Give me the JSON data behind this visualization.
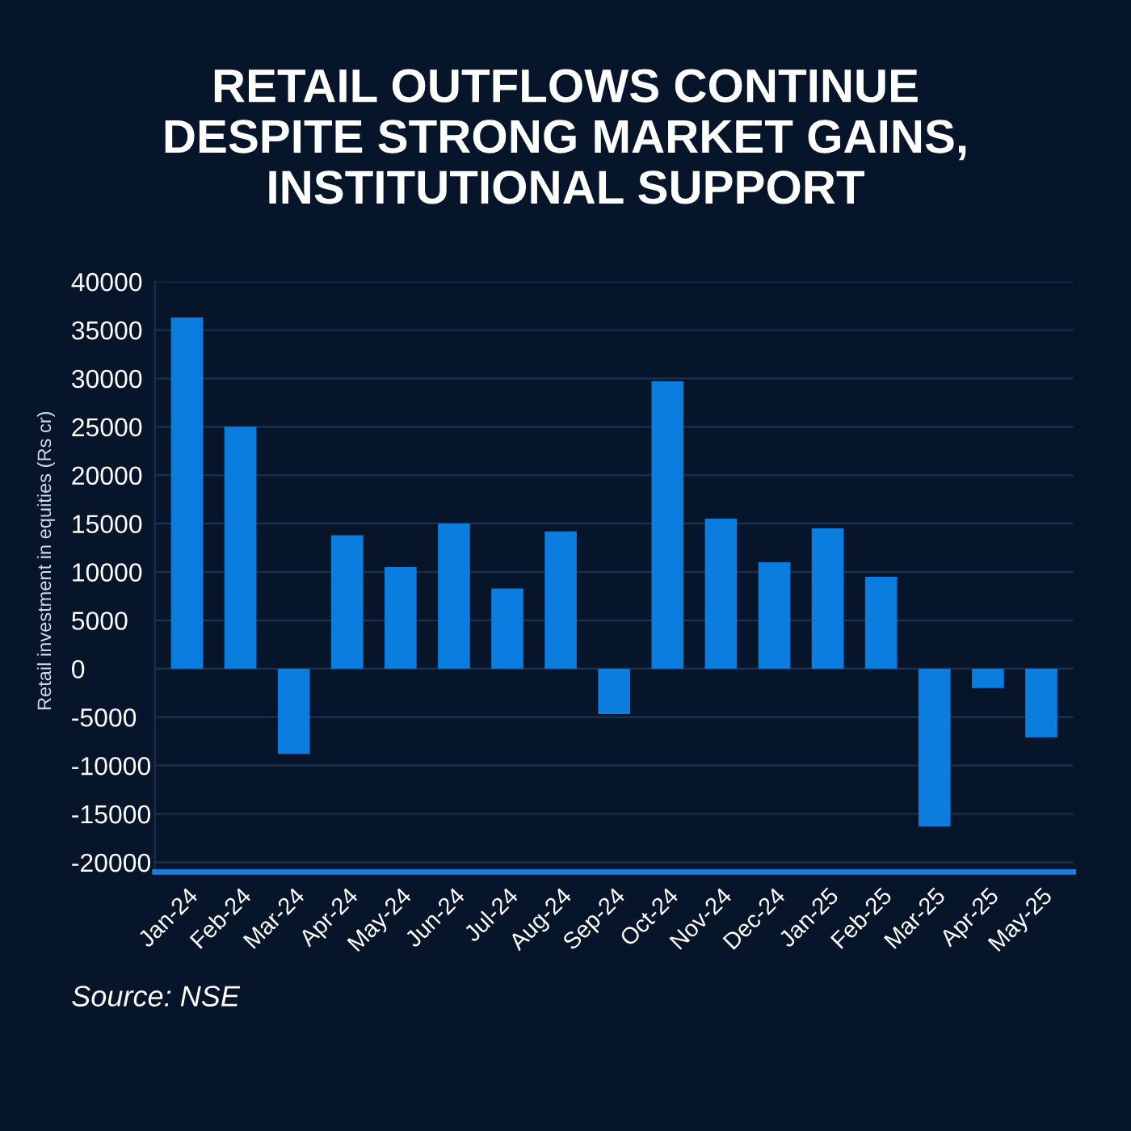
{
  "chart_data": {
    "type": "bar",
    "title": "RETAIL OUTFLOWS CONTINUE DESPITE STRONG MARKET GAINS, INSTITUTIONAL SUPPORT",
    "ylabel": "Retail investment in equities (Rs cr)",
    "categories": [
      "Jan-24",
      "Feb-24",
      "Mar-24",
      "Apr-24",
      "May-24",
      "Jun-24",
      "Jul-24",
      "Aug-24",
      "Sep-24",
      "Oct-24",
      "Nov-24",
      "Dec-24",
      "Jan-25",
      "Feb-25",
      "Mar-25",
      "Apr-25",
      "May-25"
    ],
    "values": [
      36300,
      25000,
      -8800,
      13800,
      10500,
      15000,
      8300,
      14200,
      -4700,
      29700,
      15500,
      11000,
      14500,
      9500,
      -16300,
      -2000,
      -7100
    ],
    "color": "#0b7ddf",
    "ylim": [
      -21000,
      40000
    ],
    "yticks": [
      -20000,
      -15000,
      -10000,
      -5000,
      0,
      5000,
      10000,
      15000,
      20000,
      25000,
      30000,
      35000,
      40000
    ],
    "grid": "y",
    "annotations": [
      "Source: NSE"
    ]
  }
}
